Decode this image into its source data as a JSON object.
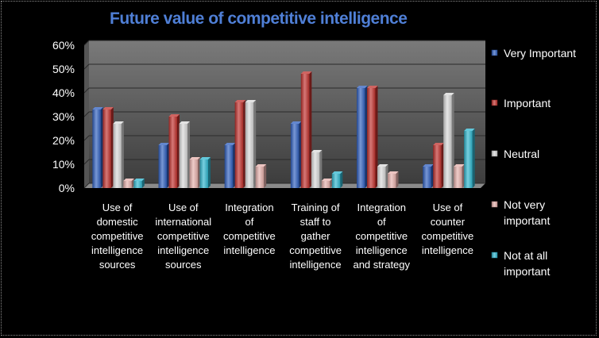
{
  "chart_data": {
    "type": "bar",
    "title": "Future value of competitive intelligence",
    "xlabel": "",
    "ylabel": "",
    "ylim": [
      0,
      0.6
    ],
    "yticks": [
      "0%",
      "10%",
      "20%",
      "30%",
      "40%",
      "50%",
      "60%"
    ],
    "grid": true,
    "legend_position": "right",
    "categories": [
      [
        "Use of",
        "domestic",
        "competitive",
        "intelligence",
        "sources"
      ],
      [
        "Use of",
        "international",
        "competitive",
        "intelligence",
        "sources"
      ],
      [
        "Integration",
        "of",
        "competitive",
        "intelligence"
      ],
      [
        "Training of",
        "staff to",
        "gather",
        "competitive",
        "intelligence"
      ],
      [
        "Integration",
        "of",
        "competitive",
        "intelligence",
        "and strategy"
      ],
      [
        "Use of",
        "counter",
        "competitive",
        "intelligence"
      ]
    ],
    "series": [
      {
        "name": "Very Important",
        "legend_lines": [
          "Very Important"
        ],
        "color": "#2f5fbf",
        "values": [
          0.33,
          0.18,
          0.18,
          0.27,
          0.42,
          0.09
        ]
      },
      {
        "name": "Important",
        "legend_lines": [
          "Important"
        ],
        "color": "#c0302c",
        "values": [
          0.33,
          0.3,
          0.36,
          0.48,
          0.42,
          0.18
        ]
      },
      {
        "name": "Neutral",
        "legend_lines": [
          "Neutral"
        ],
        "color": "#d9d9d9",
        "values": [
          0.27,
          0.27,
          0.36,
          0.15,
          0.09,
          0.39
        ]
      },
      {
        "name": "Not very important",
        "legend_lines": [
          "Not very",
          "important"
        ],
        "color": "#e6b0ac",
        "values": [
          0.03,
          0.12,
          0.09,
          0.03,
          0.06,
          0.09
        ]
      },
      {
        "name": "Not at all important",
        "legend_lines": [
          "Not at all",
          "important"
        ],
        "color": "#2fb6cf",
        "values": [
          0.03,
          0.12,
          0,
          0.06,
          0,
          0.24
        ]
      }
    ]
  }
}
